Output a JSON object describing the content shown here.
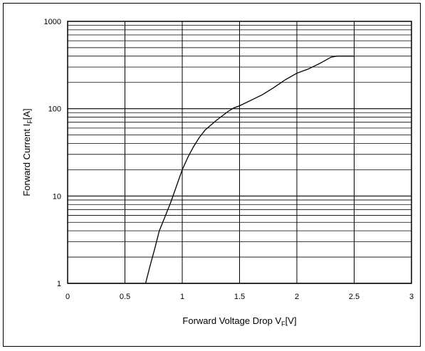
{
  "chart_data": {
    "type": "line",
    "title": "",
    "xlabel": "Forward Voltage Drop V",
    "xlabel_sub": "F",
    "xlabel_unit": "[V]",
    "ylabel": "Forward Current I",
    "ylabel_sub": "F",
    "ylabel_unit": "[A]",
    "xlim": [
      0,
      3
    ],
    "ylim": [
      1,
      1000
    ],
    "yscale": "log",
    "grid": true,
    "x_ticks": [
      "0",
      "0.5",
      "1",
      "1.5",
      "2",
      "2.5",
      "3"
    ],
    "y_ticks": [
      "1",
      "10",
      "100",
      "1000"
    ],
    "series": [
      {
        "x": [
          0.68,
          0.72,
          0.76,
          0.8,
          0.85,
          0.9,
          0.95,
          1.0,
          1.05,
          1.1,
          1.15,
          1.2,
          1.25,
          1.3,
          1.35,
          1.4,
          1.45,
          1.5,
          1.6,
          1.7,
          1.8,
          1.9,
          2.0,
          2.1,
          2.2,
          2.3,
          2.35,
          2.5
        ],
        "y": [
          1,
          1.6,
          2.5,
          4,
          5.8,
          8.5,
          13,
          20,
          28,
          37,
          47,
          57,
          65,
          74,
          83,
          93,
          102,
          108,
          125,
          145,
          175,
          215,
          255,
          285,
          330,
          390,
          400,
          400
        ]
      }
    ]
  }
}
